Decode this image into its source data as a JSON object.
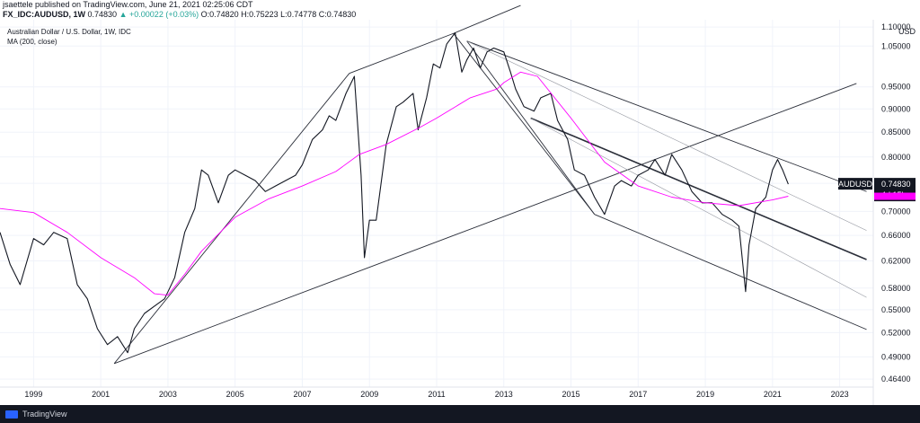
{
  "header": {
    "publisher_line": "jsaettele published on TradingView.com, June 21, 2021 02:25:06 CDT",
    "symbol": "FX_IDC:AUDUSD, 1W",
    "last": "0.74830",
    "change": "+0.00022 (+0.03%)",
    "ohlc": "O:0.74820 H:0.75223 L:0.74778 C:0.74830"
  },
  "legend": {
    "title": "Australian Dollar / U.S. Dollar, 1W, IDC",
    "indicator": "MA (200, close)"
  },
  "footer": {
    "brand": "TradingView"
  },
  "colors": {
    "price": "#131722",
    "ma": "#ff00ff",
    "trendline": "#2a2e39",
    "price_tag_bg": "#131722",
    "ma_tag_bg": "#ff00ff"
  },
  "chart_data": {
    "type": "line",
    "title": "Australian Dollar / U.S. Dollar, 1W, IDC",
    "scale": "log",
    "xlim": [
      1998.0,
      2024.0
    ],
    "ylim": [
      0.455,
      1.12
    ],
    "currency_label": "USD",
    "x_ticks": [
      "1999",
      "2001",
      "2003",
      "2005",
      "2007",
      "2009",
      "2011",
      "2013",
      "2015",
      "2017",
      "2019",
      "2021",
      "2023"
    ],
    "y_ticks": [
      "1.10000",
      "1.05000",
      "0.95000",
      "0.90000",
      "0.85000",
      "0.80000",
      "0.75000",
      "0.70000",
      "0.66000",
      "0.62000",
      "0.58000",
      "0.55000",
      "0.52000",
      "0.49000",
      "0.46400"
    ],
    "last_price_tag": "0.74830",
    "symbol_tag": "AUDUSD",
    "countdown_tag": "4d 15h",
    "series": [
      {
        "name": "AUDUSD",
        "x": [
          1998.0,
          1998.3,
          1998.6,
          1999.0,
          1999.3,
          1999.6,
          2000.0,
          2000.3,
          2000.6,
          2000.9,
          2001.2,
          2001.5,
          2001.8,
          2002.0,
          2002.3,
          2002.6,
          2002.9,
          2003.2,
          2003.5,
          2003.8,
          2004.0,
          2004.2,
          2004.5,
          2004.8,
          2005.0,
          2005.3,
          2005.6,
          2005.9,
          2006.2,
          2006.5,
          2006.8,
          2007.0,
          2007.3,
          2007.6,
          2007.8,
          2008.0,
          2008.3,
          2008.55,
          2008.75,
          2008.85,
          2009.0,
          2009.2,
          2009.5,
          2009.8,
          2010.0,
          2010.3,
          2010.45,
          2010.7,
          2010.9,
          2011.1,
          2011.3,
          2011.55,
          2011.75,
          2011.9,
          2012.1,
          2012.3,
          2012.5,
          2012.7,
          2013.0,
          2013.2,
          2013.35,
          2013.6,
          2013.9,
          2014.1,
          2014.4,
          2014.6,
          2014.9,
          2015.1,
          2015.4,
          2015.7,
          2016.0,
          2016.3,
          2016.5,
          2016.8,
          2017.0,
          2017.3,
          2017.5,
          2017.8,
          2018.0,
          2018.3,
          2018.6,
          2018.9,
          2019.2,
          2019.5,
          2019.8,
          2020.0,
          2020.2,
          2020.3,
          2020.5,
          2020.8,
          2021.0,
          2021.15,
          2021.3,
          2021.47
        ],
        "values": [
          0.665,
          0.615,
          0.585,
          0.655,
          0.645,
          0.665,
          0.655,
          0.585,
          0.565,
          0.525,
          0.505,
          0.515,
          0.495,
          0.525,
          0.545,
          0.555,
          0.565,
          0.595,
          0.665,
          0.705,
          0.775,
          0.765,
          0.715,
          0.765,
          0.775,
          0.765,
          0.755,
          0.735,
          0.745,
          0.755,
          0.765,
          0.785,
          0.835,
          0.855,
          0.885,
          0.875,
          0.935,
          0.975,
          0.765,
          0.625,
          0.685,
          0.685,
          0.825,
          0.905,
          0.915,
          0.935,
          0.855,
          0.925,
          1.005,
          0.995,
          1.055,
          1.085,
          0.985,
          1.015,
          1.045,
          0.995,
          1.035,
          1.045,
          1.035,
          0.985,
          0.945,
          0.905,
          0.895,
          0.925,
          0.935,
          0.875,
          0.835,
          0.775,
          0.765,
          0.725,
          0.695,
          0.745,
          0.755,
          0.745,
          0.765,
          0.775,
          0.795,
          0.765,
          0.805,
          0.775,
          0.735,
          0.715,
          0.715,
          0.695,
          0.685,
          0.675,
          0.575,
          0.645,
          0.705,
          0.725,
          0.775,
          0.795,
          0.775,
          0.7483
        ]
      },
      {
        "name": "MA (200, close)",
        "x": [
          1998.0,
          1999.0,
          2000.0,
          2001.0,
          2002.0,
          2002.6,
          2003.0,
          2003.5,
          2004.0,
          2005.0,
          2006.0,
          2007.0,
          2008.0,
          2008.7,
          2009.5,
          2010.5,
          2011.0,
          2012.0,
          2012.8,
          2013.0,
          2013.5,
          2014.0,
          2015.0,
          2016.0,
          2017.0,
          2018.0,
          2019.0,
          2020.0,
          2021.0,
          2021.47
        ],
        "values": [
          0.705,
          0.698,
          0.665,
          0.625,
          0.595,
          0.572,
          0.57,
          0.6,
          0.635,
          0.69,
          0.722,
          0.745,
          0.772,
          0.805,
          0.825,
          0.86,
          0.88,
          0.925,
          0.945,
          0.96,
          0.985,
          0.975,
          0.88,
          0.79,
          0.745,
          0.725,
          0.715,
          0.71,
          0.72,
          0.7265
        ]
      }
    ],
    "trendlines": [
      {
        "x": [
          2001.4,
          2023.5
        ],
        "y": [
          0.482,
          0.958
        ]
      },
      {
        "x": [
          2001.4,
          2008.4
        ],
        "y": [
          0.482,
          0.982
        ]
      },
      {
        "x": [
          2008.4,
          2011.5
        ],
        "y": [
          0.982,
          1.083
        ]
      },
      {
        "x": [
          2011.5,
          2013.5
        ],
        "y": [
          1.083,
          1.16
        ]
      },
      {
        "x": [
          2011.5,
          2015.7
        ],
        "y": [
          1.083,
          0.695
        ]
      },
      {
        "x": [
          2011.9,
          2015.7
        ],
        "y": [
          1.063,
          0.695
        ]
      },
      {
        "x": [
          2011.9,
          2023.8
        ],
        "y": [
          1.063,
          0.735
        ]
      },
      {
        "x": [
          2013.8,
          2023.8
        ],
        "y": [
          0.88,
          0.622
        ]
      },
      {
        "x": [
          2015.7,
          2023.8
        ],
        "y": [
          0.695,
          0.524
        ]
      },
      {
        "x": [
          2011.9,
          2023.8
        ],
        "y": [
          1.063,
          0.668
        ]
      },
      {
        "x": [
          2013.8,
          2023.8
        ],
        "y": [
          0.88,
          0.567
        ]
      }
    ]
  }
}
